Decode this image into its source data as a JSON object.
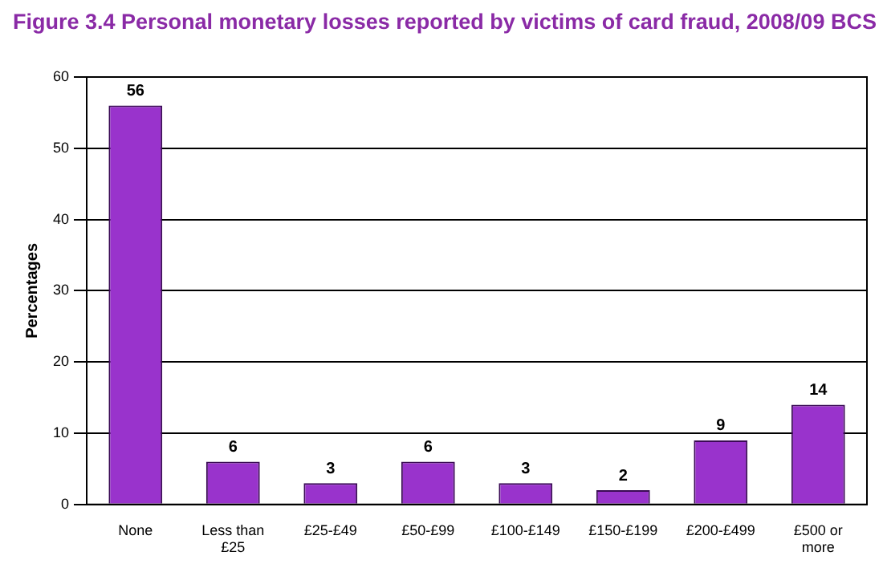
{
  "chart_data": {
    "type": "bar",
    "title": "Figure 3.4 Personal monetary losses reported by victims of card fraud, 2008/09 BCS",
    "ylabel": "Percentages",
    "categories": [
      "None",
      "Less than £25",
      "£25-£49",
      "£50-£99",
      "£100-£149",
      "£150-£199",
      "£200-£499",
      "£500 or more"
    ],
    "values": [
      56,
      6,
      3,
      6,
      3,
      2,
      9,
      14
    ],
    "color": "#9933cc",
    "ylim": [
      0,
      60
    ],
    "yticks": [
      0,
      10,
      20,
      30,
      40,
      50,
      60
    ],
    "grid": "y",
    "data_labels": true
  }
}
